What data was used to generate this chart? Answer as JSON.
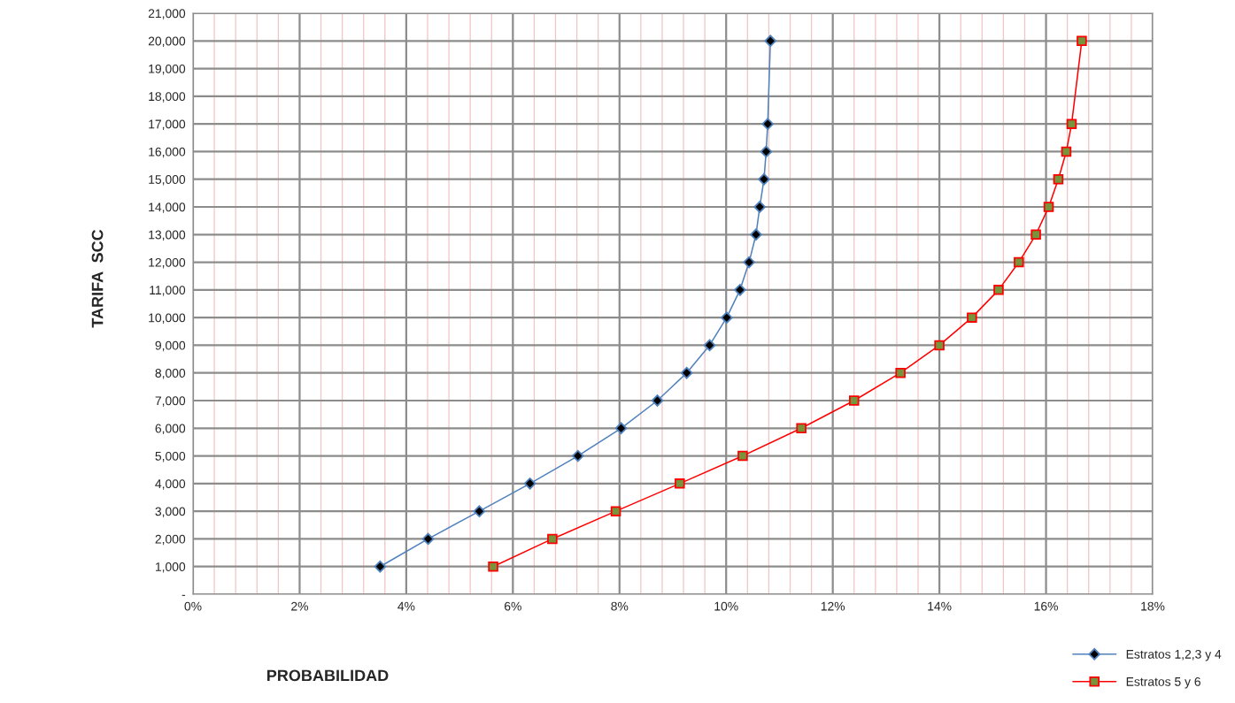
{
  "chart_data": {
    "type": "line",
    "xlabel": "PROBABILIDAD",
    "ylabel": "TARIFA  SCC",
    "series": [
      {
        "name": "Estratos 1,2,3 y 4",
        "color": "#4f81bd",
        "marker": "diamond",
        "x": [
          3.51,
          4.41,
          5.37,
          6.32,
          7.22,
          8.03,
          8.71,
          9.26,
          9.69,
          10.01,
          10.26,
          10.43,
          10.56,
          10.63,
          10.71,
          10.75,
          10.78,
          10.83
        ],
        "values": [
          1000,
          2000,
          3000,
          4000,
          5000,
          6000,
          7000,
          8000,
          9000,
          10000,
          11000,
          12000,
          13000,
          14000,
          15000,
          16000,
          17000,
          20000
        ]
      },
      {
        "name": "Estratos 5 y 6",
        "color": "#ff0000",
        "marker": "square",
        "x": [
          5.63,
          6.74,
          7.93,
          9.13,
          10.31,
          11.41,
          12.4,
          13.27,
          14.0,
          14.61,
          15.11,
          15.49,
          15.81,
          16.05,
          16.23,
          16.38,
          16.48,
          16.67
        ],
        "values": [
          1000,
          2000,
          3000,
          4000,
          5000,
          6000,
          7000,
          8000,
          9000,
          10000,
          11000,
          12000,
          13000,
          14000,
          15000,
          16000,
          17000,
          20000
        ]
      }
    ],
    "xlim": [
      0,
      18
    ],
    "xticks": [
      {
        "value": 0,
        "label": "0%"
      },
      {
        "value": 0.4,
        "label": null
      },
      {
        "value": 0.8,
        "label": null
      },
      {
        "value": 1.2,
        "label": null
      },
      {
        "value": 1.6,
        "label": null
      },
      {
        "value": 2,
        "label": "2%"
      },
      {
        "value": 2.4,
        "label": null
      },
      {
        "value": 2.8,
        "label": null
      },
      {
        "value": 3.2,
        "label": null
      },
      {
        "value": 3.6,
        "label": null
      },
      {
        "value": 4,
        "label": "4%"
      },
      {
        "value": 4.4,
        "label": null
      },
      {
        "value": 4.8,
        "label": null
      },
      {
        "value": 5.2,
        "label": null
      },
      {
        "value": 5.6,
        "label": null
      },
      {
        "value": 6,
        "label": "6%"
      },
      {
        "value": 6.4,
        "label": null
      },
      {
        "value": 6.8,
        "label": null
      },
      {
        "value": 7.2,
        "label": null
      },
      {
        "value": 7.6,
        "label": null
      },
      {
        "value": 8,
        "label": "8%"
      },
      {
        "value": 8.4,
        "label": null
      },
      {
        "value": 8.8,
        "label": null
      },
      {
        "value": 9.2,
        "label": null
      },
      {
        "value": 9.6,
        "label": null
      },
      {
        "value": 10,
        "label": "10%"
      },
      {
        "value": 10.4,
        "label": null
      },
      {
        "value": 10.8,
        "label": null
      },
      {
        "value": 11.2,
        "label": null
      },
      {
        "value": 11.6,
        "label": null
      },
      {
        "value": 12,
        "label": "12%"
      },
      {
        "value": 12.4,
        "label": null
      },
      {
        "value": 12.8,
        "label": null
      },
      {
        "value": 13.2,
        "label": null
      },
      {
        "value": 13.6,
        "label": null
      },
      {
        "value": 14,
        "label": "14%"
      },
      {
        "value": 14.4,
        "label": null
      },
      {
        "value": 14.8,
        "label": null
      },
      {
        "value": 15.2,
        "label": null
      },
      {
        "value": 15.6,
        "label": null
      },
      {
        "value": 16,
        "label": "16%"
      },
      {
        "value": 16.4,
        "label": null
      },
      {
        "value": 16.8,
        "label": null
      },
      {
        "value": 17.2,
        "label": null
      },
      {
        "value": 17.6,
        "label": null
      },
      {
        "value": 18,
        "label": "18%"
      }
    ],
    "ylim": [
      0,
      21000
    ],
    "yticks": [
      {
        "value": 0,
        "label": "-"
      },
      {
        "value": 1000,
        "label": "1,000"
      },
      {
        "value": 2000,
        "label": "2,000"
      },
      {
        "value": 3000,
        "label": "3,000"
      },
      {
        "value": 4000,
        "label": "4,000"
      },
      {
        "value": 5000,
        "label": "5,000"
      },
      {
        "value": 6000,
        "label": "6,000"
      },
      {
        "value": 7000,
        "label": "7,000"
      },
      {
        "value": 8000,
        "label": "8,000"
      },
      {
        "value": 9000,
        "label": "9,000"
      },
      {
        "value": 10000,
        "label": "10,000"
      },
      {
        "value": 11000,
        "label": "11,000"
      },
      {
        "value": 12000,
        "label": "12,000"
      },
      {
        "value": 13000,
        "label": "13,000"
      },
      {
        "value": 14000,
        "label": "14,000"
      },
      {
        "value": 15000,
        "label": "15,000"
      },
      {
        "value": 16000,
        "label": "16,000"
      },
      {
        "value": 17000,
        "label": "17,000"
      },
      {
        "value": 18000,
        "label": "18,000"
      },
      {
        "value": 19000,
        "label": "19,000"
      },
      {
        "value": 20000,
        "label": "20,000"
      },
      {
        "value": 21000,
        "label": "21,000"
      }
    ],
    "grid": true,
    "legend": "bottom right"
  }
}
